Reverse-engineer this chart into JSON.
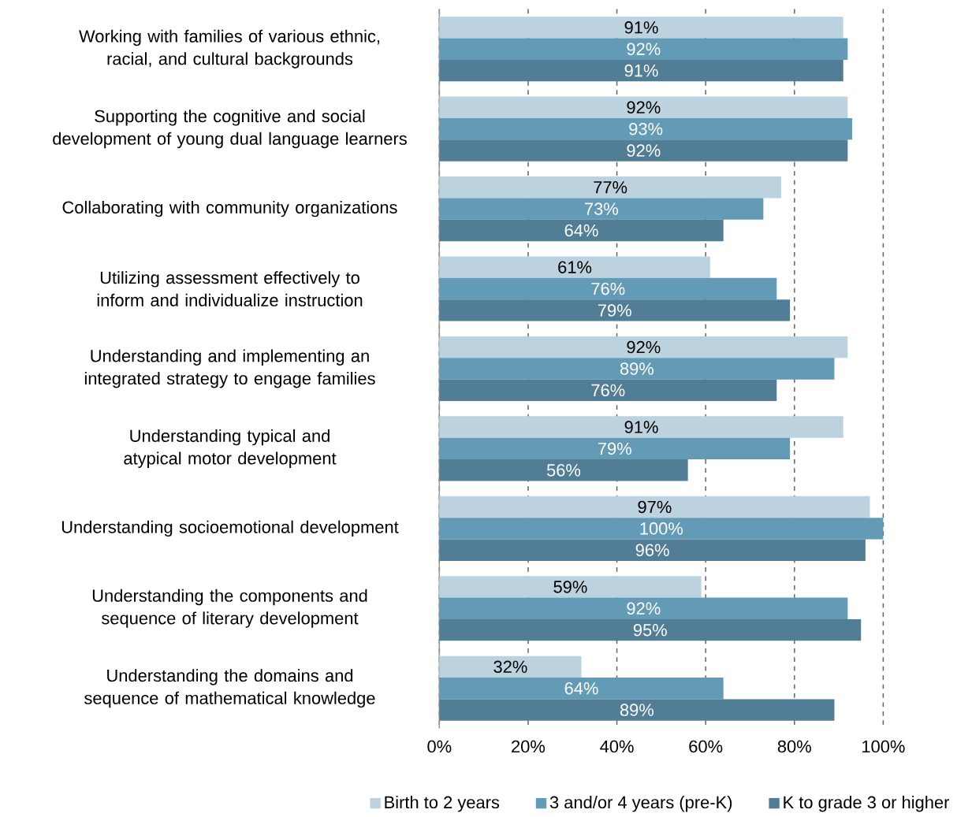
{
  "chart_data": {
    "type": "bar",
    "orientation": "horizontal",
    "categories": [
      "Working with families of various ethnic, racial, and cultural backgrounds",
      "Supporting the cognitive and social development of young dual language learners",
      "Collaborating with community organizations",
      "Utilizing assessment effectively to inform and individualize instruction",
      "Understanding and implementing an integrated strategy to engage families",
      "Understanding typical and atypical motor development",
      "Understanding socioemotional development",
      "Understanding the components and sequence of literary development",
      "Understanding the domains and sequence of mathematical knowledge"
    ],
    "series": [
      {
        "name": "Birth to 2 years",
        "color": "#bdd2df",
        "values": [
          91,
          92,
          77,
          61,
          92,
          91,
          97,
          59,
          32
        ],
        "value_labels": [
          "91%",
          "92%",
          "77%",
          "61%",
          "92%",
          "91%",
          "97%",
          "59%",
          "32%"
        ]
      },
      {
        "name": "3 and/or 4 years (pre-K)",
        "color": "#639bb6",
        "values": [
          92,
          93,
          73,
          76,
          89,
          79,
          100,
          92,
          64
        ],
        "value_labels": [
          "92%",
          "93%",
          "73%",
          "76%",
          "89%",
          "79%",
          "100%",
          "92%",
          "64%"
        ]
      },
      {
        "name": "K to grade 3 or higher",
        "color": "#517e96",
        "values": [
          91,
          92,
          64,
          79,
          76,
          56,
          96,
          95,
          89
        ],
        "value_labels": [
          "91%",
          "92%",
          "64%",
          "79%",
          "76%",
          "56%",
          "96%",
          "95%",
          "89%"
        ]
      }
    ],
    "xlim": [
      0,
      100
    ],
    "xticks": [
      {
        "value": 0,
        "label": "0%"
      },
      {
        "value": 20,
        "label": "20%"
      },
      {
        "value": 40,
        "label": "40%"
      },
      {
        "value": 60,
        "label": "60%"
      },
      {
        "value": 80,
        "label": "80%"
      },
      {
        "value": 100,
        "label": "100%"
      }
    ],
    "grid": "x",
    "legend": "bottom"
  }
}
